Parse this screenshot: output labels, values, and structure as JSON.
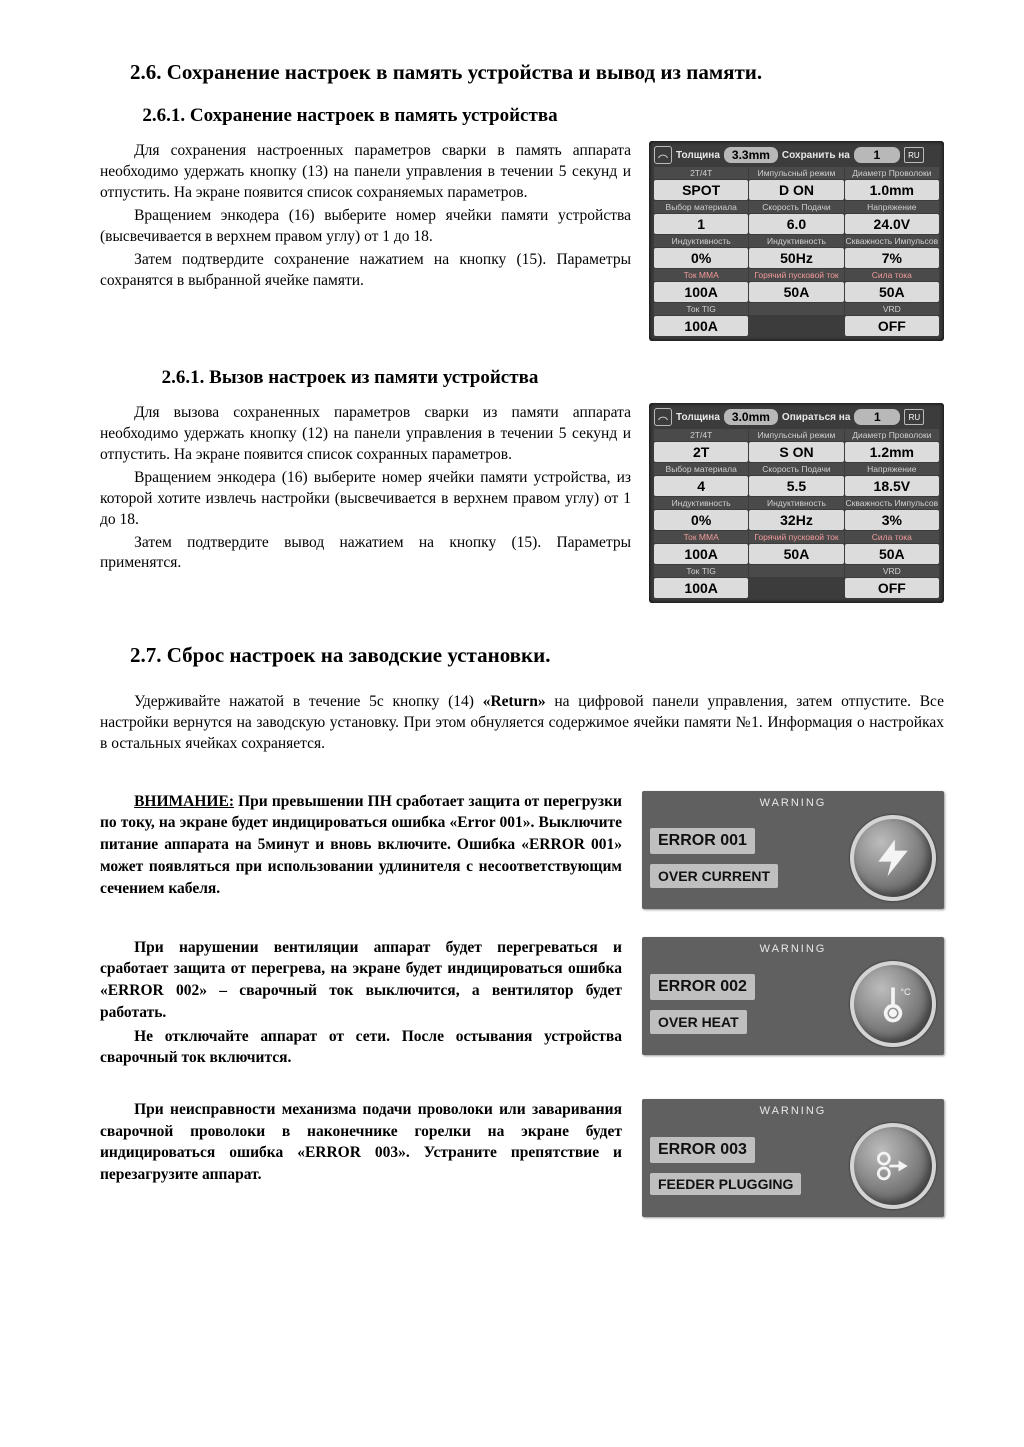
{
  "section26": {
    "title": "2.6. Сохранение настроек в память устройства и вывод из памяти.",
    "sub1": {
      "title": "2.6.1. Сохранение настроек в память устройства",
      "p1": "Для сохранения настроенных параметров сварки в память аппарата необходимо удержать кнопку (13) на панели управления в течении 5 секунд и отпустить. На экране появится список сохраняемых параметров.",
      "p2": "Вращением энкодера (16) выберите номер ячейки памяти устройства (высвечивается в верхнем правом углу) от 1 до 18.",
      "p3": "Затем подтвердите сохранение нажатием на кнопку (15). Параметры сохранятся в выбранной ячейке памяти."
    },
    "sub2": {
      "title": "2.6.1. Вызов настроек из памяти устройства",
      "p1": "Для вызова сохраненных параметров сварки из памяти аппарата необходимо удержать кнопку (12) на  панели управления в течении 5 секунд и отпустить. На экране появится список сохранных параметров.",
      "p2": "Вращением энкодера (16) выберите номер ячейки памяти устройства, из которой хотите извлечь настройки (высвечивается в верхнем правом углу) от 1 до 18.",
      "p3": "Затем подтвердите вывод нажатием на кнопку (15). Параметры применятся."
    }
  },
  "panel1": {
    "top": {
      "thickLabel": "Толщина",
      "thick": "3.3mm",
      "saveLabel": "Сохранить на",
      "slot": "1",
      "lang": "RU"
    },
    "headers": [
      "2T/4T",
      "Импульсный режим",
      "Диаметр Проволоки",
      "Выбор материала",
      "Скорость Подачи",
      "Напряжение",
      "Индуктивность",
      "Индуктивность",
      "Скважность Импульсов",
      "Ток MMA",
      "Горячий пусковой ток",
      "Сила тока",
      "Ток TIG",
      "",
      "VRD"
    ],
    "values": [
      "SPOT",
      "D  ON",
      "1.0mm",
      "1",
      "6.0",
      "24.0V",
      "0%",
      "50Hz",
      "7%",
      "100A",
      "50A",
      "50A",
      "100A",
      "",
      "OFF"
    ]
  },
  "panel2": {
    "top": {
      "thickLabel": "Толщина",
      "thick": "3.0mm",
      "saveLabel": "Опираться на",
      "slot": "1",
      "lang": "RU"
    },
    "headers": [
      "2T/4T",
      "Импульсный режим",
      "Диаметр Проволоки",
      "Выбор материала",
      "Скорость Подачи",
      "Напряжение",
      "Индуктивность",
      "Индуктивность",
      "Скважность Импульсов",
      "Ток MMA",
      "Горячий пусковой ток",
      "Сила тока",
      "Ток TIG",
      "",
      "VRD"
    ],
    "values": [
      "2T",
      "S  ON",
      "1.2mm",
      "4",
      "5.5",
      "18.5V",
      "0%",
      "32Hz",
      "3%",
      "100A",
      "50A",
      "50A",
      "100A",
      "",
      "OFF"
    ]
  },
  "section27": {
    "title": "2.7. Сброс настроек на заводские установки.",
    "p1a": "Удерживайте нажатой в течение 5с кнопку (14) ",
    "p1b": "«Return»",
    "p1c": " на цифровой панели управления, затем отпустите. Все настройки вернутся на заводскую установку. При этом обнуляется содержимое ячейки памяти №1. Информация о настройках в остальных ячейках сохраняется."
  },
  "warnings": {
    "lead": "ВНИМАНИЕ:",
    "w1": " При превышении ПН  сработает защита от перегрузки по току,  на экране будет индицироваться ошибка  «Error 001». Выключите питание аппарата на 5минут и вновь включите. Ошибка «ERROR 001» может появляться при использовании удлинителя с несоответствующим сечением кабеля.",
    "w2a": "При нарушении вентиляции аппарат будет перегреваться и сработает защита от перегрева, на экране будет индицироваться ошибка  «ERROR 002» – сварочный ток выключится, а вентилятор будет работать.",
    "w2b": "Не отключайте аппарат от сети. После остывания устройства сварочный ток включится.",
    "w3": "При неисправности механизма подачи проволоки или заваривания сварочной проволоки в наконечнике горелки  на экране будет индицироваться ошибка «ERROR 003». Устраните препятствие и перезагрузите аппарат."
  },
  "errors": {
    "warnLabel": "WARNING",
    "e1": {
      "code": "ERROR 001",
      "msg": "OVER CURRENT"
    },
    "e2": {
      "code": "ERROR 002",
      "msg": "OVER HEAT"
    },
    "e3": {
      "code": "ERROR 003",
      "msg": "FEEDER PLUGGING"
    }
  },
  "colors": {
    "panel_bg": "#3c3c3c",
    "cell_bg": "#dcdcdc",
    "card_bg": "#606060"
  }
}
